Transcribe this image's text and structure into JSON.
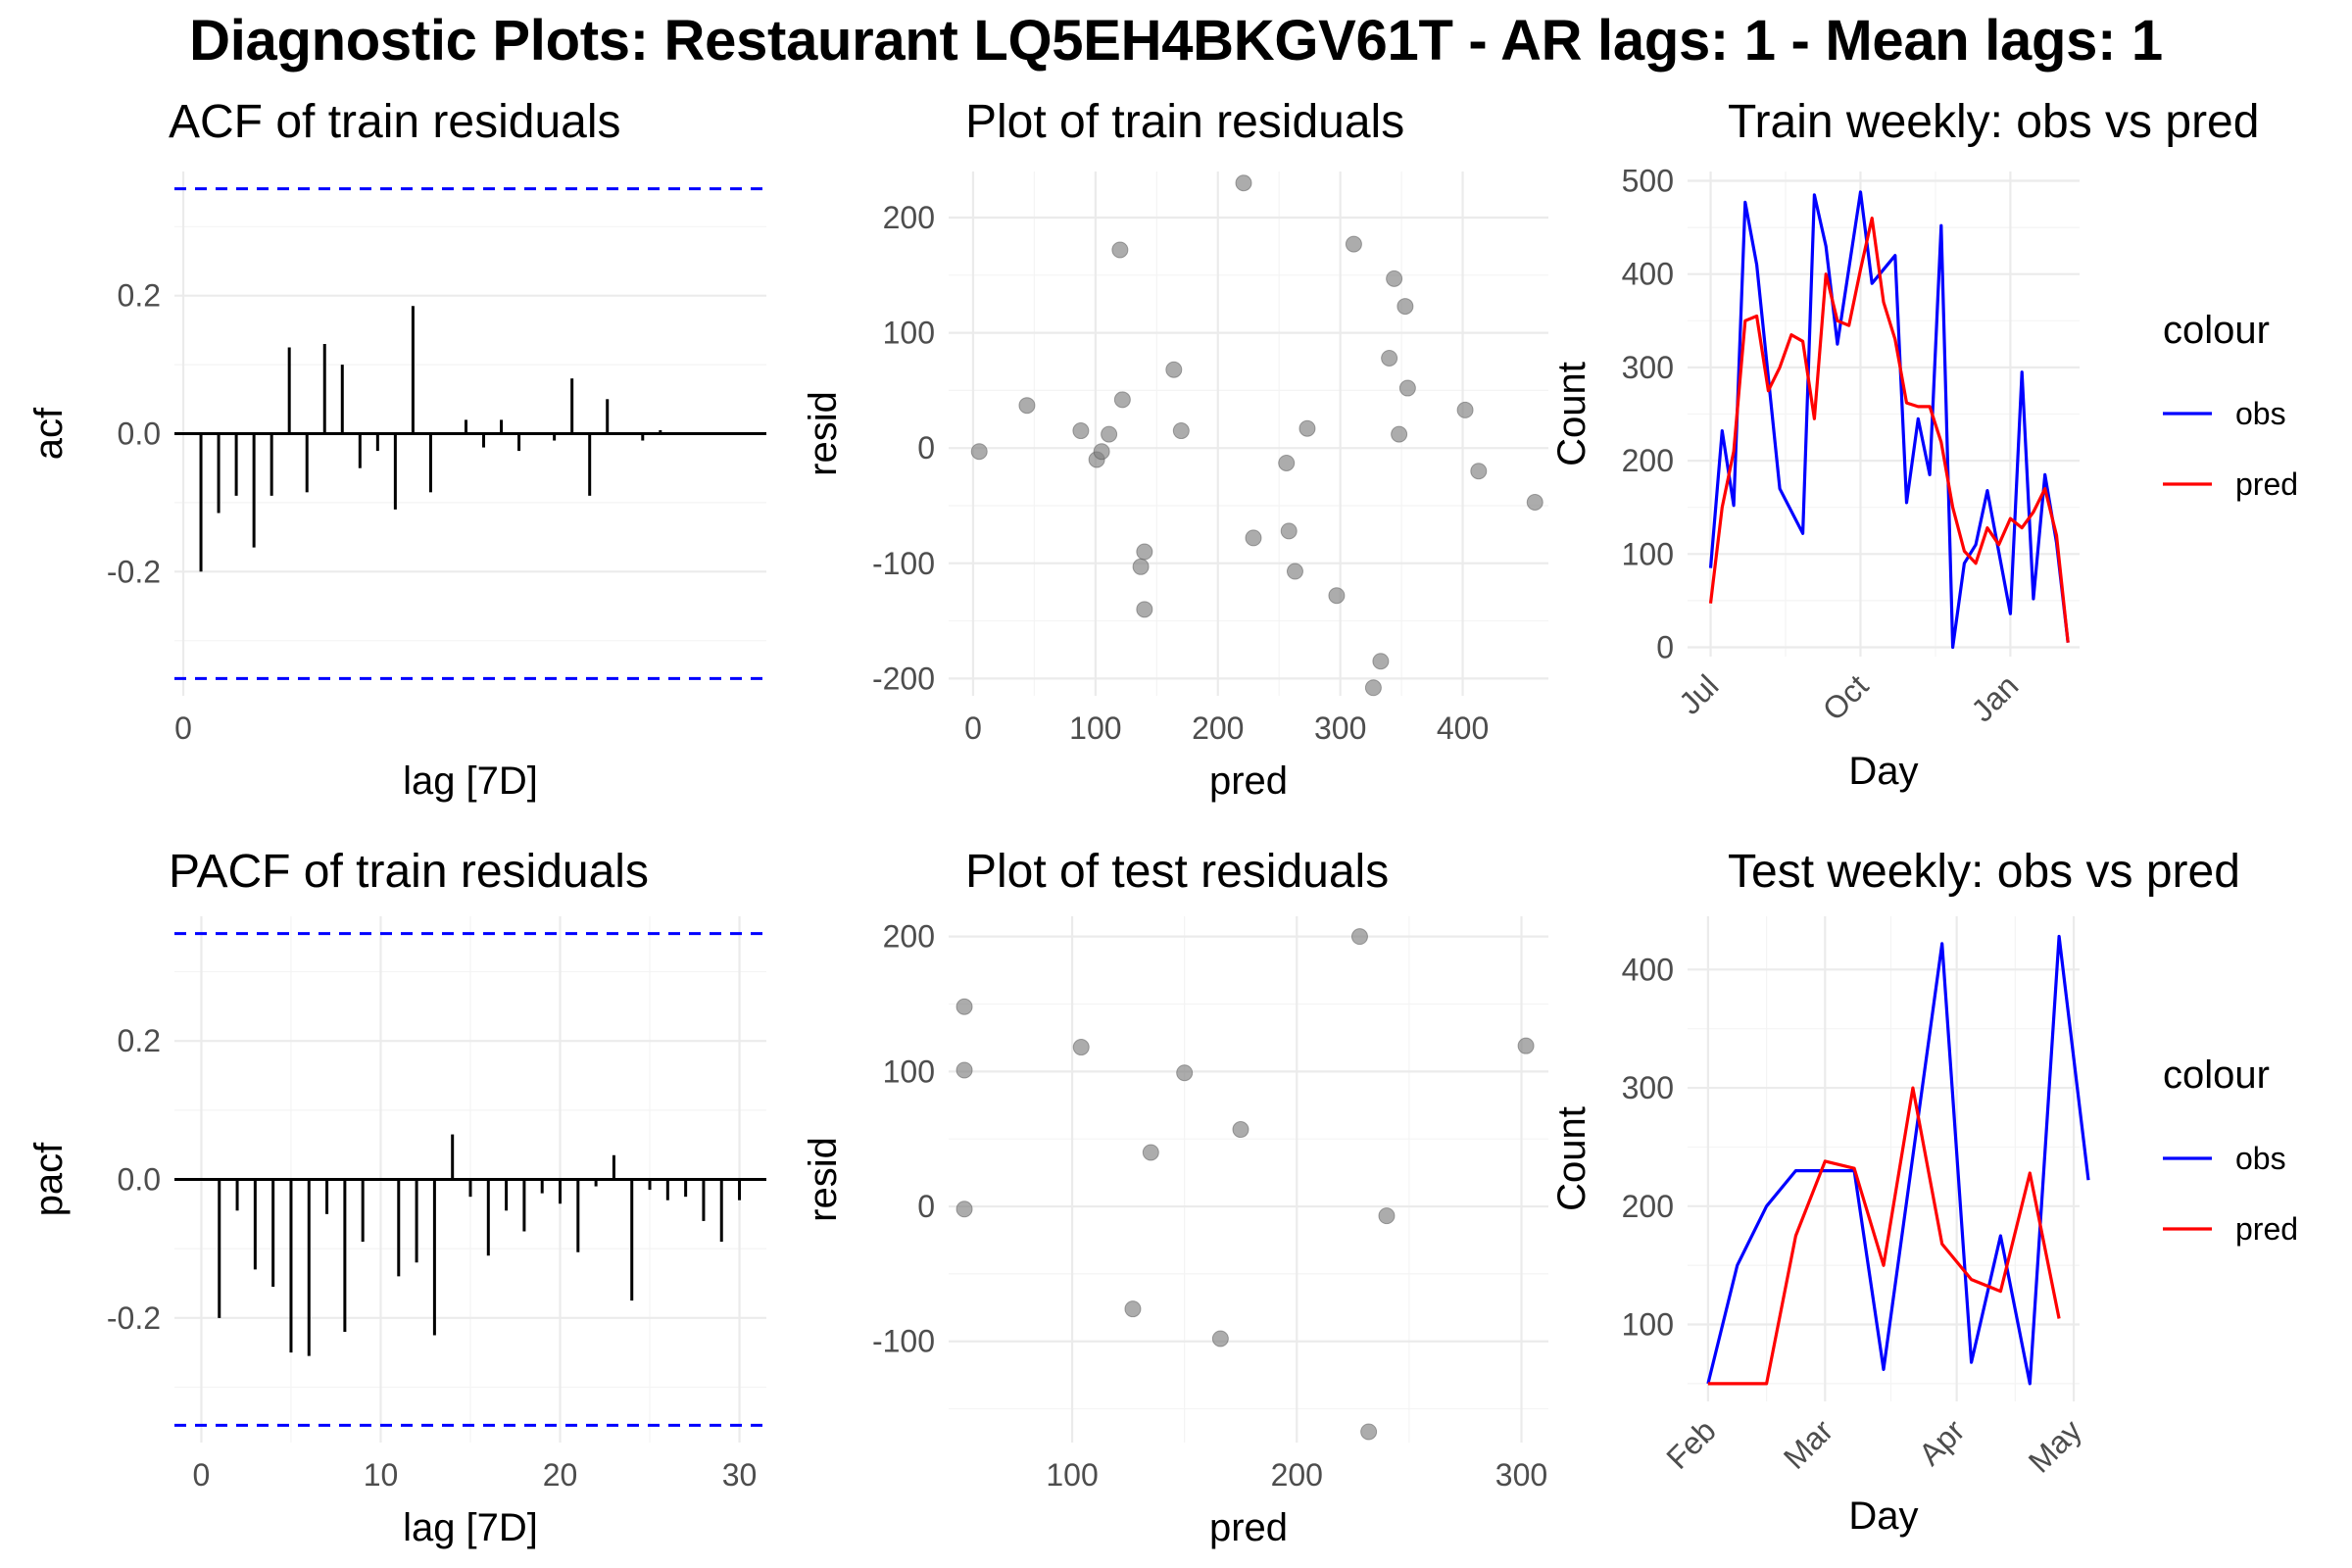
{
  "title": "Diagnostic Plots: Restaurant LQ5EH4BKGV61T - AR lags: 1 - Mean lags: 1",
  "colors": {
    "obs": "#0000ff",
    "pred": "#ff0000",
    "bound": "#0000ff",
    "point": "#808080"
  },
  "chart_data": [
    {
      "id": "acf",
      "type": "bar",
      "title": "ACF of train residuals",
      "xlabel": "lag [7D]",
      "ylabel": "acf",
      "xlim": [
        -0.5,
        33
      ],
      "ylim": [
        -0.38,
        0.38
      ],
      "xticks": [
        0
      ],
      "yticks": [
        -0.2,
        0.0,
        0.2
      ],
      "ytick_labels": [
        "-0.2",
        "0.0",
        "0.2"
      ],
      "bounds": [
        0.355,
        -0.355
      ],
      "lags": [
        1,
        2,
        3,
        4,
        5,
        6,
        7,
        8,
        9,
        10,
        11,
        12,
        13,
        14,
        15,
        16,
        17,
        18,
        19,
        20,
        21,
        22,
        23,
        24,
        25,
        26,
        27,
        28,
        29,
        30,
        31,
        32
      ],
      "values": [
        -0.2,
        -0.115,
        -0.09,
        -0.165,
        -0.09,
        0.125,
        -0.085,
        0.13,
        0.1,
        -0.05,
        -0.025,
        -0.11,
        0.185,
        -0.085,
        0.0,
        0.02,
        -0.02,
        0.02,
        -0.025,
        0.0,
        -0.01,
        0.08,
        -0.09,
        0.05,
        0.0,
        -0.01,
        0.005,
        0.0,
        0.0,
        0.0,
        0.0,
        0.0
      ]
    },
    {
      "id": "resid_train",
      "type": "scatter",
      "title": "Plot of train residuals",
      "xlabel": "pred",
      "ylabel": "resid",
      "xlim": [
        -20,
        470
      ],
      "ylim": [
        -215,
        240
      ],
      "xticks": [
        0,
        100,
        200,
        300,
        400
      ],
      "yticks": [
        -200,
        -100,
        0,
        100,
        200
      ],
      "points": [
        [
          5,
          -3
        ],
        [
          44,
          37
        ],
        [
          88,
          15
        ],
        [
          101,
          -10
        ],
        [
          105,
          -3
        ],
        [
          111,
          12
        ],
        [
          120,
          172
        ],
        [
          122,
          42
        ],
        [
          137,
          -103
        ],
        [
          140,
          -90
        ],
        [
          140,
          -140
        ],
        [
          164,
          68
        ],
        [
          170,
          15
        ],
        [
          221,
          230
        ],
        [
          229,
          -78
        ],
        [
          256,
          -13
        ],
        [
          258,
          -72
        ],
        [
          263,
          -107
        ],
        [
          273,
          17
        ],
        [
          297,
          -128
        ],
        [
          311,
          177
        ],
        [
          327,
          -208
        ],
        [
          333,
          -185
        ],
        [
          340,
          78
        ],
        [
          344,
          147
        ],
        [
          348,
          12
        ],
        [
          353,
          123
        ],
        [
          355,
          52
        ],
        [
          402,
          33
        ],
        [
          413,
          -20
        ],
        [
          459,
          -47
        ]
      ]
    },
    {
      "id": "train_weekly",
      "type": "line",
      "title": "Train weekly: obs vs pred",
      "xlabel": "Day",
      "ylabel": "Count",
      "xlim": [
        -2,
        32
      ],
      "ylim": [
        -10,
        510
      ],
      "xticks": [
        0,
        13,
        26
      ],
      "xtick_labels": [
        "Jul",
        "Oct",
        "Jan"
      ],
      "yticks": [
        0,
        100,
        200,
        300,
        400,
        500
      ],
      "legend_title": "colour",
      "series": [
        {
          "name": "obs",
          "values": [
            [
              0,
              85
            ],
            [
              1,
              232
            ],
            [
              2,
              152
            ],
            [
              3,
              477
            ],
            [
              4,
              410
            ],
            [
              6,
              170
            ],
            [
              8,
              122
            ],
            [
              9,
              485
            ],
            [
              10,
              430
            ],
            [
              11,
              325
            ],
            [
              13,
              488
            ],
            [
              14,
              390
            ],
            [
              16,
              420
            ],
            [
              17,
              155
            ],
            [
              18,
              245
            ],
            [
              19,
              185
            ],
            [
              20,
              452
            ],
            [
              21,
              0
            ],
            [
              22,
              90
            ],
            [
              23,
              110
            ],
            [
              24,
              168
            ],
            [
              26,
              36
            ],
            [
              27,
              295
            ],
            [
              28,
              52
            ],
            [
              29,
              185
            ],
            [
              30,
              112
            ],
            [
              31,
              5
            ]
          ]
        },
        {
          "name": "pred",
          "values": [
            [
              0,
              47
            ],
            [
              1,
              150
            ],
            [
              2,
              210
            ],
            [
              3,
              350
            ],
            [
              4,
              355
            ],
            [
              5,
              275
            ],
            [
              6,
              300
            ],
            [
              7,
              335
            ],
            [
              8,
              328
            ],
            [
              9,
              245
            ],
            [
              10,
              400
            ],
            [
              11,
              350
            ],
            [
              12,
              345
            ],
            [
              13,
              405
            ],
            [
              14,
              460
            ],
            [
              15,
              370
            ],
            [
              16,
              330
            ],
            [
              17,
              262
            ],
            [
              18,
              258
            ],
            [
              19,
              258
            ],
            [
              20,
              220
            ],
            [
              21,
              150
            ],
            [
              22,
              103
            ],
            [
              23,
              90
            ],
            [
              24,
              128
            ],
            [
              25,
              110
            ],
            [
              26,
              138
            ],
            [
              27,
              128
            ],
            [
              28,
              145
            ],
            [
              29,
              170
            ],
            [
              30,
              120
            ],
            [
              31,
              5
            ]
          ]
        }
      ]
    },
    {
      "id": "pacf",
      "type": "bar",
      "title": "PACF of train residuals",
      "xlabel": "lag [7D]",
      "ylabel": "pacf",
      "xlim": [
        -1.5,
        31.5
      ],
      "ylim": [
        -0.38,
        0.38
      ],
      "xticks": [
        0,
        10,
        20,
        30
      ],
      "yticks": [
        -0.2,
        0.0,
        0.2
      ],
      "ytick_labels": [
        "-0.2",
        "0.0",
        "0.2"
      ],
      "bounds": [
        0.355,
        -0.355
      ],
      "lags": [
        1,
        2,
        3,
        4,
        5,
        6,
        7,
        8,
        9,
        10,
        11,
        12,
        13,
        14,
        15,
        16,
        17,
        18,
        19,
        20,
        21,
        22,
        23,
        24,
        25,
        26,
        27,
        28,
        29,
        30
      ],
      "values": [
        -0.2,
        -0.045,
        -0.13,
        -0.155,
        -0.25,
        -0.255,
        -0.05,
        -0.22,
        -0.09,
        0.0,
        -0.14,
        -0.12,
        -0.225,
        0.065,
        -0.025,
        -0.11,
        -0.045,
        -0.075,
        -0.02,
        -0.035,
        -0.105,
        -0.01,
        0.035,
        -0.175,
        -0.015,
        -0.03,
        -0.025,
        -0.06,
        -0.09,
        -0.03
      ]
    },
    {
      "id": "resid_test",
      "type": "scatter",
      "title": "Plot of test residuals",
      "xlabel": "pred",
      "ylabel": "resid",
      "xlim": [
        45,
        312
      ],
      "ylim": [
        -175,
        215
      ],
      "xticks": [
        100,
        200,
        300
      ],
      "yticks": [
        -100,
        0,
        100,
        200
      ],
      "points": [
        [
          52,
          148
        ],
        [
          52,
          101
        ],
        [
          52,
          -2
        ],
        [
          104,
          118
        ],
        [
          127,
          -76
        ],
        [
          135,
          40
        ],
        [
          150,
          99
        ],
        [
          166,
          -98
        ],
        [
          175,
          57
        ],
        [
          228,
          200
        ],
        [
          232,
          -167
        ],
        [
          240,
          -7
        ],
        [
          302,
          119
        ]
      ]
    },
    {
      "id": "test_weekly",
      "type": "line",
      "title": "Test weekly: obs vs pred",
      "xlabel": "Day",
      "ylabel": "Count",
      "xlim": [
        -0.7,
        12.7
      ],
      "ylim": [
        35,
        445
      ],
      "xticks": [
        0,
        4,
        8.5,
        12.5
      ],
      "xtick_labels": [
        "Feb",
        "Mar",
        "Apr",
        "May"
      ],
      "yticks": [
        100,
        200,
        300,
        400
      ],
      "legend_title": "colour",
      "series": [
        {
          "name": "obs",
          "values": [
            [
              0,
              50
            ],
            [
              1,
              150
            ],
            [
              2,
              200
            ],
            [
              3,
              230
            ],
            [
              4,
              230
            ],
            [
              5,
              230
            ],
            [
              6,
              62
            ],
            [
              8,
              422
            ],
            [
              9,
              68
            ],
            [
              10,
              175
            ],
            [
              11,
              50
            ],
            [
              12,
              428
            ],
            [
              13,
              222
            ]
          ]
        },
        {
          "name": "pred",
          "values": [
            [
              0,
              50
            ],
            [
              1,
              50
            ],
            [
              2,
              50
            ],
            [
              3,
              175
            ],
            [
              4,
              238
            ],
            [
              5,
              232
            ],
            [
              6,
              150
            ],
            [
              7,
              300
            ],
            [
              8,
              168
            ],
            [
              9,
              138
            ],
            [
              10,
              128
            ],
            [
              11,
              228
            ],
            [
              12,
              105
            ]
          ]
        }
      ]
    }
  ]
}
